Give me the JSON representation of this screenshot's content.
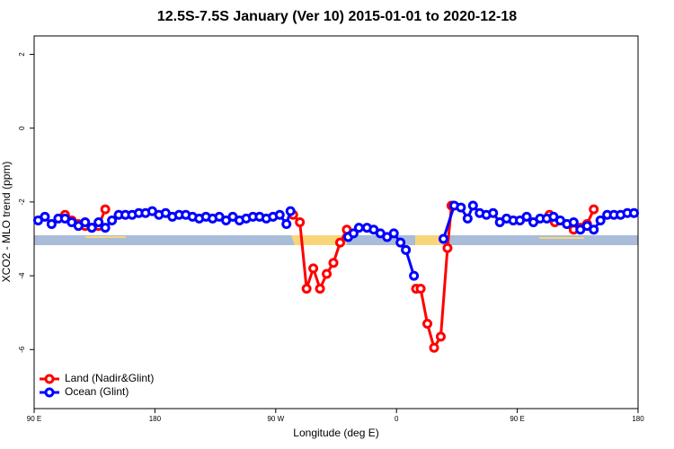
{
  "chart_data": {
    "type": "line",
    "title": "12.5S-7.5S January (Ver 10)   2015-01-01 to 2020-12-18",
    "x_label": "Longitude (deg E)",
    "y_label": "XCO2 - MLO trend (ppm)",
    "xlim": [
      90,
      540
    ],
    "xticks": [
      {
        "value": 90,
        "label": "90 E"
      },
      180,
      {
        "value": 270,
        "label": "90 W"
      },
      {
        "value": 360,
        "label": "0"
      },
      {
        "value": 450,
        "label": "90 E"
      },
      {
        "value": 540,
        "label": "180"
      }
    ],
    "ylim": [
      -7.6,
      2.5
    ],
    "yticks": [
      -6,
      -4,
      -2,
      0,
      2
    ],
    "legend": "bottom-left",
    "series": [
      {
        "name": "Land (Nadir&Glint)",
        "color": "#ff0000",
        "x": [
          113,
          118,
          123,
          128,
          133,
          138,
          143,
          null,
          283,
          288,
          293,
          298,
          303,
          308,
          313,
          318,
          323,
          null,
          374.6,
          378,
          383,
          388,
          393,
          398,
          401,
          null,
          474,
          478,
          487,
          492,
          497,
          502,
          507
        ],
        "values": [
          -2.35,
          -2.5,
          -2.6,
          -2.65,
          -2.7,
          -2.65,
          -2.2,
          null,
          -2.35,
          -2.55,
          -4.35,
          -3.8,
          -4.35,
          -3.95,
          -3.65,
          -3.1,
          -2.75,
          null,
          -4.35,
          -4.35,
          -5.3,
          -5.95,
          -5.65,
          -3.25,
          -2.1,
          null,
          -2.35,
          -2.55,
          -2.6,
          -2.75,
          -2.7,
          -2.6,
          -2.2
        ]
      },
      {
        "name": "Ocean (Glint)",
        "color": "#0000ff",
        "x": [
          93,
          98,
          103,
          108,
          113,
          118,
          123,
          128,
          133,
          138,
          143,
          148,
          153,
          158,
          163,
          168,
          173,
          178,
          183,
          188,
          193,
          198,
          203,
          208,
          213,
          218,
          223,
          228,
          233,
          238,
          243,
          248,
          253,
          258,
          263,
          268,
          273,
          278,
          281,
          null,
          324,
          328,
          332,
          338,
          343,
          348,
          353,
          358,
          363,
          367,
          373,
          null,
          395,
          403,
          408,
          413,
          417,
          422,
          427,
          432,
          437,
          442,
          447,
          452,
          457,
          462,
          467,
          472,
          477,
          482,
          487,
          492,
          497,
          502,
          507,
          512,
          517,
          522,
          527,
          532,
          537
        ],
        "values": [
          -2.5,
          -2.4,
          -2.6,
          -2.45,
          -2.45,
          -2.55,
          -2.65,
          -2.55,
          -2.7,
          -2.55,
          -2.7,
          -2.5,
          -2.35,
          -2.35,
          -2.35,
          -2.3,
          -2.3,
          -2.25,
          -2.35,
          -2.3,
          -2.4,
          -2.35,
          -2.35,
          -2.4,
          -2.45,
          -2.4,
          -2.45,
          -2.4,
          -2.5,
          -2.4,
          -2.5,
          -2.45,
          -2.4,
          -2.4,
          -2.45,
          -2.4,
          -2.35,
          -2.6,
          -2.25,
          null,
          -2.95,
          -2.85,
          -2.7,
          -2.7,
          -2.75,
          -2.85,
          -2.95,
          -2.85,
          -3.1,
          -3.3,
          -4.0,
          null,
          -3.0,
          -2.1,
          -2.15,
          -2.45,
          -2.1,
          -2.3,
          -2.35,
          -2.3,
          -2.55,
          -2.45,
          -2.5,
          -2.5,
          -2.4,
          -2.55,
          -2.45,
          -2.45,
          -2.4,
          -2.5,
          -2.6,
          -2.55,
          -2.75,
          -2.65,
          -2.75,
          -2.5,
          -2.35,
          -2.35,
          -2.35,
          -2.3,
          -2.3
        ]
      }
    ]
  }
}
